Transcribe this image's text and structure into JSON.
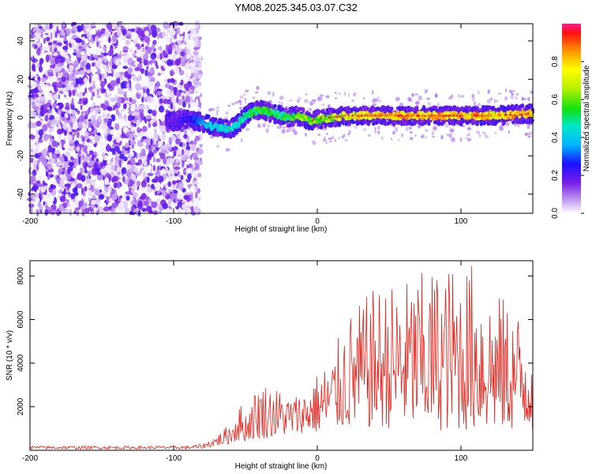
{
  "title": "YM08.2025.345.03.07.C32",
  "chart_data": [
    {
      "type": "heatmap",
      "xlabel": "Height of straight line (km)",
      "ylabel": "Frequency (Hz)",
      "xlim": [
        -200,
        150
      ],
      "ylim": [
        -50,
        49
      ],
      "xticks": [
        -200,
        -100,
        0,
        100
      ],
      "yticks": [
        -40,
        -20,
        0,
        20,
        40
      ],
      "colorbar": {
        "label": "Normalized spectral amplitude",
        "range": [
          0,
          1
        ],
        "ticks": [
          0.0,
          0.2,
          0.4,
          0.6,
          0.8
        ]
      },
      "noise_region_x": [
        -200,
        -81
      ],
      "ridge": {
        "x": [
          -100,
          -90,
          -82,
          -75,
          -70,
          -65,
          -60,
          -55,
          -50,
          -45,
          -40,
          -35,
          -30,
          -25,
          -20,
          -15,
          -10,
          -5,
          0,
          10,
          20,
          30,
          50,
          70,
          100,
          120,
          150
        ],
        "freq": [
          -2,
          -1,
          -2,
          -4,
          -5,
          -6,
          -6,
          -3,
          1,
          3,
          4,
          3,
          2,
          1,
          0,
          1,
          0,
          -2,
          -1,
          0,
          1,
          1,
          1,
          1,
          1,
          1,
          2
        ],
        "amplitude": [
          0.2,
          0.25,
          0.35,
          0.45,
          0.5,
          0.5,
          0.5,
          0.5,
          0.55,
          0.6,
          0.6,
          0.6,
          0.6,
          0.6,
          0.6,
          0.65,
          0.7,
          0.7,
          0.7,
          0.75,
          0.8,
          0.85,
          0.9,
          0.9,
          0.9,
          0.9,
          0.9
        ]
      }
    },
    {
      "type": "line",
      "xlabel": "Height of straight line (km)",
      "ylabel": "SNR (10 * v/v)",
      "xlim": [
        -200,
        150
      ],
      "ylim": [
        0,
        8700
      ],
      "xticks": [
        -200,
        -100,
        0,
        100
      ],
      "yticks": [
        2000,
        4000,
        6000,
        8000
      ],
      "series": [
        {
          "name": "SNR",
          "color": "#e8231c",
          "envelope_x": [
            -200,
            -90,
            -80,
            -70,
            -60,
            -55,
            -50,
            -45,
            -40,
            -30,
            -20,
            -10,
            0,
            10,
            20,
            30,
            40,
            60,
            80,
            100,
            110,
            120,
            140,
            150
          ],
          "envelope_upper": [
            200,
            200,
            300,
            700,
            1300,
            2300,
            1800,
            2600,
            3200,
            3000,
            2500,
            2700,
            3600,
            4300,
            6200,
            6800,
            7500,
            7800,
            8400,
            8600,
            8700,
            7500,
            6500,
            6200
          ],
          "envelope_lower": [
            50,
            50,
            80,
            200,
            300,
            400,
            400,
            500,
            500,
            600,
            700,
            800,
            800,
            900,
            1000,
            1000,
            1000,
            1000,
            900,
            900,
            900,
            900,
            900,
            900
          ]
        }
      ]
    }
  ]
}
